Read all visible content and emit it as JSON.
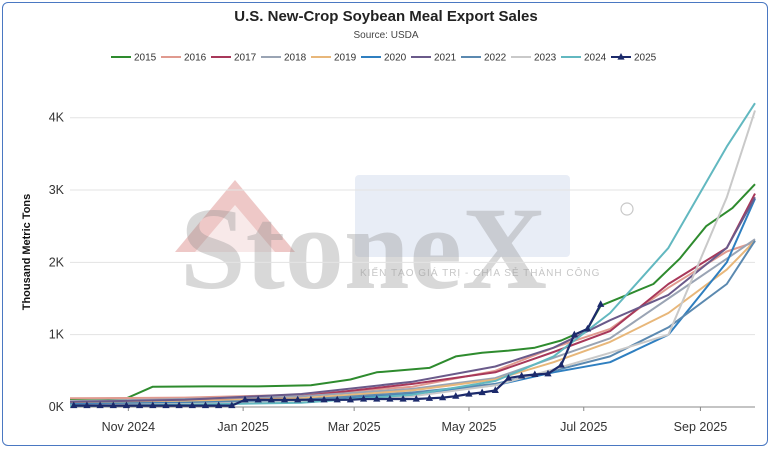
{
  "chart_data": {
    "type": "line",
    "title": "U.S. New-Crop Soybean Meal Export Sales",
    "subtitle": "Source: USDA",
    "xlabel": "",
    "ylabel": "Thousand Metric Tons",
    "x_tick_labels": [
      "Nov 2024",
      "Jan 2025",
      "Mar 2025",
      "May 2025",
      "Jul 2025",
      "Sep 2025"
    ],
    "y_tick_labels": [
      "0K",
      "1K",
      "2K",
      "3K",
      "4K"
    ],
    "ylim": [
      0,
      4300
    ],
    "legend_position": "top",
    "grid": "horizontal",
    "series": [
      {
        "name": "2015",
        "color": "#2e8b2e",
        "marker": "none",
        "x": [
          "2024-10-01",
          "2024-10-31",
          "2024-11-14",
          "2024-12-12",
          "2025-01-09",
          "2025-02-06",
          "2025-02-27",
          "2025-03-13",
          "2025-03-27",
          "2025-04-10",
          "2025-04-24",
          "2025-05-08",
          "2025-05-22",
          "2025-06-05",
          "2025-06-19",
          "2025-07-03",
          "2025-07-10",
          "2025-07-24",
          "2025-08-07",
          "2025-08-21",
          "2025-09-04",
          "2025-09-18",
          "2025-09-30"
        ],
        "y": [
          110,
          120,
          280,
          285,
          285,
          300,
          380,
          480,
          510,
          540,
          700,
          750,
          780,
          820,
          920,
          1080,
          1400,
          1550,
          1700,
          2050,
          2500,
          2750,
          3080
        ]
      },
      {
        "name": "2016",
        "color": "#e09a8f",
        "marker": "none",
        "x": [
          "2024-10-01",
          "2024-12-01",
          "2025-02-01",
          "2025-04-01",
          "2025-05-15",
          "2025-06-15",
          "2025-07-15",
          "2025-08-15",
          "2025-09-15",
          "2025-09-30"
        ],
        "y": [
          120,
          130,
          170,
          280,
          500,
          820,
          1080,
          1650,
          2150,
          2280
        ]
      },
      {
        "name": "2017",
        "color": "#a8385a",
        "marker": "none",
        "x": [
          "2024-10-01",
          "2024-12-01",
          "2025-02-01",
          "2025-04-01",
          "2025-05-15",
          "2025-06-15",
          "2025-07-15",
          "2025-08-15",
          "2025-09-15",
          "2025-09-30"
        ],
        "y": [
          60,
          90,
          150,
          320,
          480,
          760,
          1050,
          1700,
          2200,
          2950
        ]
      },
      {
        "name": "2018",
        "color": "#9aa4b4",
        "marker": "none",
        "x": [
          "2024-10-01",
          "2024-12-01",
          "2025-02-01",
          "2025-04-01",
          "2025-05-15",
          "2025-06-15",
          "2025-07-15",
          "2025-08-15",
          "2025-09-15",
          "2025-09-30"
        ],
        "y": [
          80,
          110,
          150,
          250,
          400,
          680,
          950,
          1500,
          2050,
          2320
        ]
      },
      {
        "name": "2019",
        "color": "#e8b77a",
        "marker": "none",
        "x": [
          "2024-10-01",
          "2024-12-01",
          "2025-02-01",
          "2025-04-01",
          "2025-05-15",
          "2025-06-15",
          "2025-07-15",
          "2025-08-15",
          "2025-09-15",
          "2025-09-30"
        ],
        "y": [
          50,
          80,
          120,
          230,
          380,
          620,
          900,
          1300,
          1900,
          2300
        ]
      },
      {
        "name": "2020",
        "color": "#2f7fc0",
        "marker": "none",
        "x": [
          "2024-10-01",
          "2024-12-01",
          "2025-02-01",
          "2025-04-01",
          "2025-05-15",
          "2025-06-15",
          "2025-07-15",
          "2025-08-15",
          "2025-09-15",
          "2025-09-30"
        ],
        "y": [
          40,
          60,
          100,
          180,
          300,
          480,
          620,
          1000,
          2000,
          2880
        ]
      },
      {
        "name": "2021",
        "color": "#6a5a8a",
        "marker": "none",
        "x": [
          "2024-10-01",
          "2024-12-01",
          "2025-02-01",
          "2025-04-01",
          "2025-05-15",
          "2025-06-15",
          "2025-07-15",
          "2025-08-15",
          "2025-09-15",
          "2025-09-30"
        ],
        "y": [
          70,
          100,
          180,
          350,
          560,
          820,
          1200,
          1550,
          2200,
          2900
        ]
      },
      {
        "name": "2022",
        "color": "#5b89b0",
        "marker": "none",
        "x": [
          "2024-10-01",
          "2024-12-01",
          "2025-02-01",
          "2025-04-01",
          "2025-05-15",
          "2025-06-15",
          "2025-07-15",
          "2025-08-15",
          "2025-09-15",
          "2025-09-30"
        ],
        "y": [
          30,
          50,
          100,
          200,
          320,
          500,
          700,
          1100,
          1700,
          2300
        ]
      },
      {
        "name": "2023",
        "color": "#c9c9c9",
        "marker": "none",
        "x": [
          "2024-10-01",
          "2024-12-01",
          "2025-02-01",
          "2025-04-01",
          "2025-05-15",
          "2025-06-15",
          "2025-07-15",
          "2025-08-15",
          "2025-09-15",
          "2025-09-30"
        ],
        "y": [
          20,
          40,
          70,
          150,
          300,
          520,
          750,
          1000,
          2900,
          4100
        ]
      },
      {
        "name": "2024",
        "color": "#62b8c0",
        "marker": "none",
        "x": [
          "2024-10-01",
          "2024-12-01",
          "2025-02-01",
          "2025-04-01",
          "2025-05-15",
          "2025-06-15",
          "2025-07-15",
          "2025-08-15",
          "2025-09-15",
          "2025-09-30"
        ],
        "y": [
          15,
          30,
          60,
          170,
          360,
          700,
          1300,
          2200,
          3600,
          4200
        ]
      },
      {
        "name": "2025",
        "color": "#1c2a6b",
        "marker": "triangle",
        "x": [
          "2024-10-03",
          "2024-10-10",
          "2024-10-17",
          "2024-10-24",
          "2024-10-31",
          "2024-11-07",
          "2024-11-14",
          "2024-11-21",
          "2024-11-28",
          "2024-12-05",
          "2024-12-12",
          "2024-12-19",
          "2024-12-26",
          "2025-01-02",
          "2025-01-09",
          "2025-01-16",
          "2025-01-23",
          "2025-01-30",
          "2025-02-06",
          "2025-02-13",
          "2025-02-20",
          "2025-02-27",
          "2025-03-06",
          "2025-03-13",
          "2025-03-20",
          "2025-03-27",
          "2025-04-03",
          "2025-04-10",
          "2025-04-17",
          "2025-04-24",
          "2025-05-01",
          "2025-05-08",
          "2025-05-15",
          "2025-05-22",
          "2025-05-29",
          "2025-06-05",
          "2025-06-12",
          "2025-06-19",
          "2025-06-26",
          "2025-07-03",
          "2025-07-10"
        ],
        "y": [
          20,
          20,
          20,
          20,
          20,
          20,
          20,
          20,
          20,
          20,
          20,
          20,
          20,
          100,
          100,
          100,
          100,
          100,
          100,
          100,
          100,
          100,
          110,
          110,
          110,
          110,
          110,
          120,
          130,
          150,
          180,
          200,
          230,
          400,
          430,
          450,
          460,
          580,
          1000,
          1080,
          1420
        ]
      }
    ]
  }
}
